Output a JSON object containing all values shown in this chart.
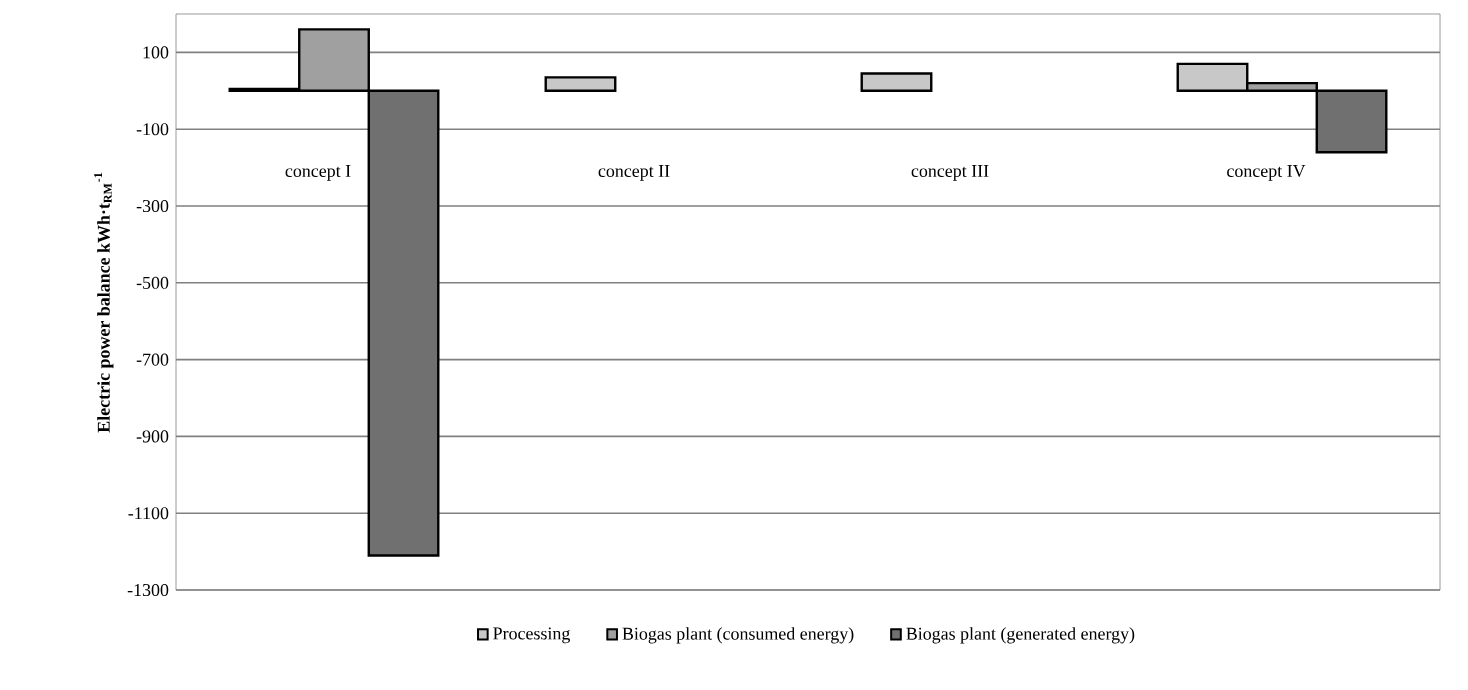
{
  "chart_data": {
    "type": "bar",
    "ylabel": "Electric power balance kWh·t$_{RM}$$^{-1}$",
    "categories": [
      "concept I",
      "concept II",
      "concept III",
      "concept IV"
    ],
    "series": [
      {
        "name": "Processing",
        "color": "#c8c8c8",
        "values": [
          5,
          35,
          45,
          70
        ]
      },
      {
        "name": "Biogas plant (consumed energy)",
        "color": "#a0a0a0",
        "values": [
          160,
          null,
          null,
          20
        ]
      },
      {
        "name": "Biogas plant (generated energy)",
        "color": "#707070",
        "values": [
          -1210,
          null,
          null,
          -160
        ]
      }
    ],
    "ylim": [
      -1300,
      200
    ],
    "yticks": [
      -1300,
      -1100,
      -900,
      -700,
      -500,
      -300,
      -100,
      100
    ],
    "grid": "y",
    "legend": "bottom"
  }
}
